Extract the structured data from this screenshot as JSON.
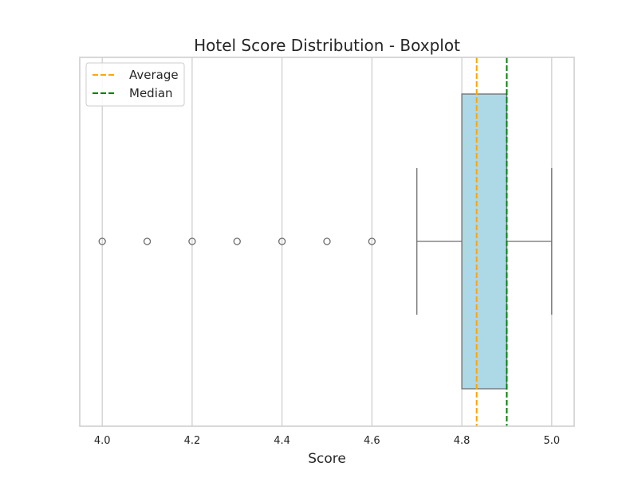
{
  "chart_data": {
    "type": "boxplot",
    "title": "Hotel Score Distribution - Boxplot",
    "xlabel": "Score",
    "ylabel": "",
    "xlim": [
      3.95,
      5.05
    ],
    "xticks": [
      4.0,
      4.2,
      4.4,
      4.6,
      4.8,
      5.0
    ],
    "xtick_labels": [
      "4.0",
      "4.2",
      "4.4",
      "4.6",
      "4.8",
      "5.0"
    ],
    "grid": "vertical",
    "box": {
      "q1": 4.8,
      "median": 4.9,
      "q3": 4.9,
      "whisker_low": 4.7,
      "whisker_high": 5.0,
      "outliers": [
        4.0,
        4.1,
        4.2,
        4.3,
        4.4,
        4.5,
        4.6
      ],
      "fill": "#add8e6",
      "edge": "#6e6e6e"
    },
    "reference_lines": [
      {
        "name": "Average",
        "value": 4.833,
        "color": "#ffa500",
        "style": "dashed"
      },
      {
        "name": "Median",
        "value": 4.9,
        "color": "#008000",
        "style": "dashed"
      }
    ],
    "legend": {
      "placement": "top-left"
    }
  }
}
